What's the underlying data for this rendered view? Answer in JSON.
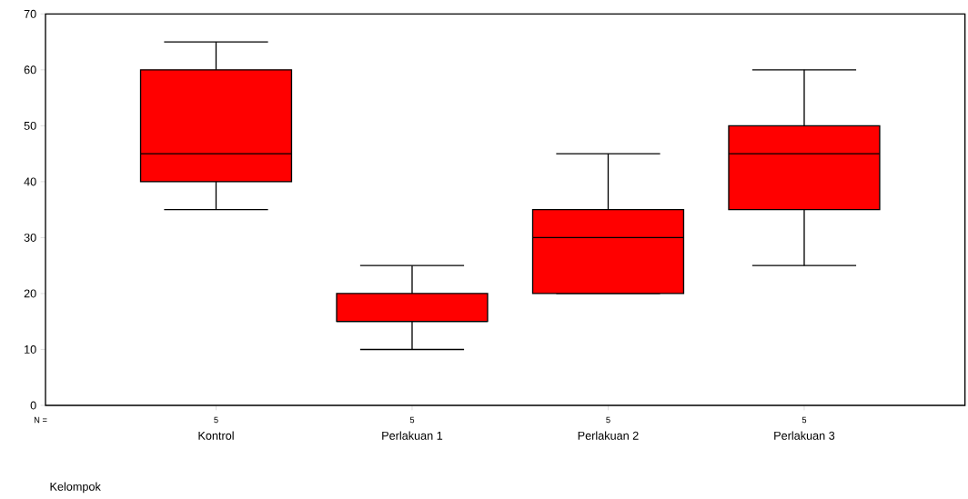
{
  "chart_data": {
    "type": "box",
    "xlabel": "Kelompok",
    "categories": [
      "Kontrol",
      "Perlakuan 1",
      "Perlakuan 2",
      "Perlakuan 3"
    ],
    "boxes": [
      {
        "low": 35,
        "q1": 40,
        "median": 45,
        "q3": 60,
        "high": 65
      },
      {
        "low": 10,
        "q1": 15,
        "median": 15,
        "q3": 20,
        "high": 25
      },
      {
        "low": 20,
        "q1": 20,
        "median": 30,
        "q3": 35,
        "high": 45
      },
      {
        "low": 25,
        "q1": 35,
        "median": 45,
        "q3": 50,
        "high": 60
      }
    ],
    "color": "#ff0000",
    "ylim": [
      0,
      70
    ],
    "yticks": [
      0,
      10,
      20,
      30,
      40,
      50,
      60,
      70
    ],
    "annotations": [
      "N =",
      "5",
      "5",
      "5",
      "5"
    ]
  }
}
